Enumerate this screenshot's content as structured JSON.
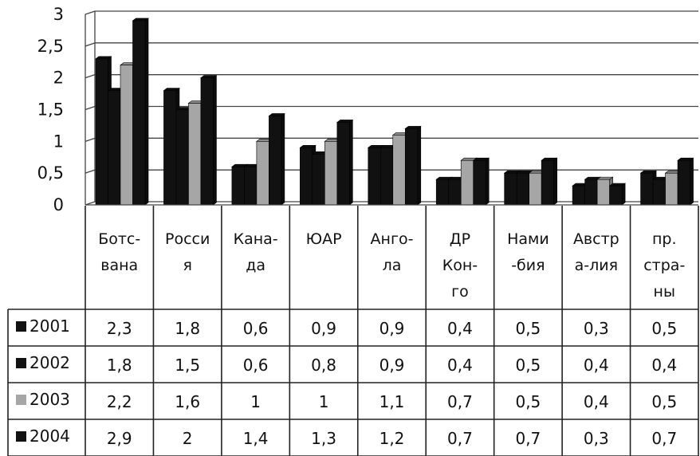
{
  "chart_data": {
    "type": "bar",
    "title": "",
    "xlabel": "",
    "ylabel": "",
    "ylim": [
      0,
      3
    ],
    "y_ticks": [
      "0",
      "0,5",
      "1",
      "1,5",
      "2",
      "2,5",
      "3"
    ],
    "grid": true,
    "legend_placement": "data-table-left",
    "categories": [
      [
        "Ботс-",
        "вана"
      ],
      [
        "Росси",
        "я"
      ],
      [
        "Кана-",
        "да"
      ],
      [
        "ЮАР"
      ],
      [
        "Анго-",
        "ла"
      ],
      [
        "ДР",
        "Кон-",
        "го"
      ],
      [
        "Нами",
        "-бия"
      ],
      [
        "Австр",
        "а-лия"
      ],
      [
        "пр.",
        "стра-",
        "ны"
      ]
    ],
    "series": [
      {
        "name": "2001",
        "color": "#111111",
        "values": [
          2.3,
          1.8,
          0.6,
          0.9,
          0.9,
          0.4,
          0.5,
          0.3,
          0.5
        ],
        "labels": [
          "2,3",
          "1,8",
          "0,6",
          "0,9",
          "0,9",
          "0,4",
          "0,5",
          "0,3",
          "0,5"
        ]
      },
      {
        "name": "2002",
        "color": "#111111",
        "values": [
          1.8,
          1.5,
          0.6,
          0.8,
          0.9,
          0.4,
          0.5,
          0.4,
          0.4
        ],
        "labels": [
          "1,8",
          "1,5",
          "0,6",
          "0,8",
          "0,9",
          "0,4",
          "0,5",
          "0,4",
          "0,4"
        ]
      },
      {
        "name": "2003",
        "color": "#a6a6a6",
        "values": [
          2.2,
          1.6,
          1.0,
          1.0,
          1.1,
          0.7,
          0.5,
          0.4,
          0.5
        ],
        "labels": [
          "2,2",
          "1,6",
          "1",
          "1",
          "1,1",
          "0,7",
          "0,5",
          "0,4",
          "0,5"
        ]
      },
      {
        "name": "2004",
        "color": "#111111",
        "values": [
          2.9,
          2.0,
          1.4,
          1.3,
          1.2,
          0.7,
          0.7,
          0.3,
          0.7
        ],
        "labels": [
          "2,9",
          "2",
          "1,4",
          "1,3",
          "1,2",
          "0,7",
          "0,7",
          "0,3",
          "0,7"
        ]
      }
    ]
  }
}
